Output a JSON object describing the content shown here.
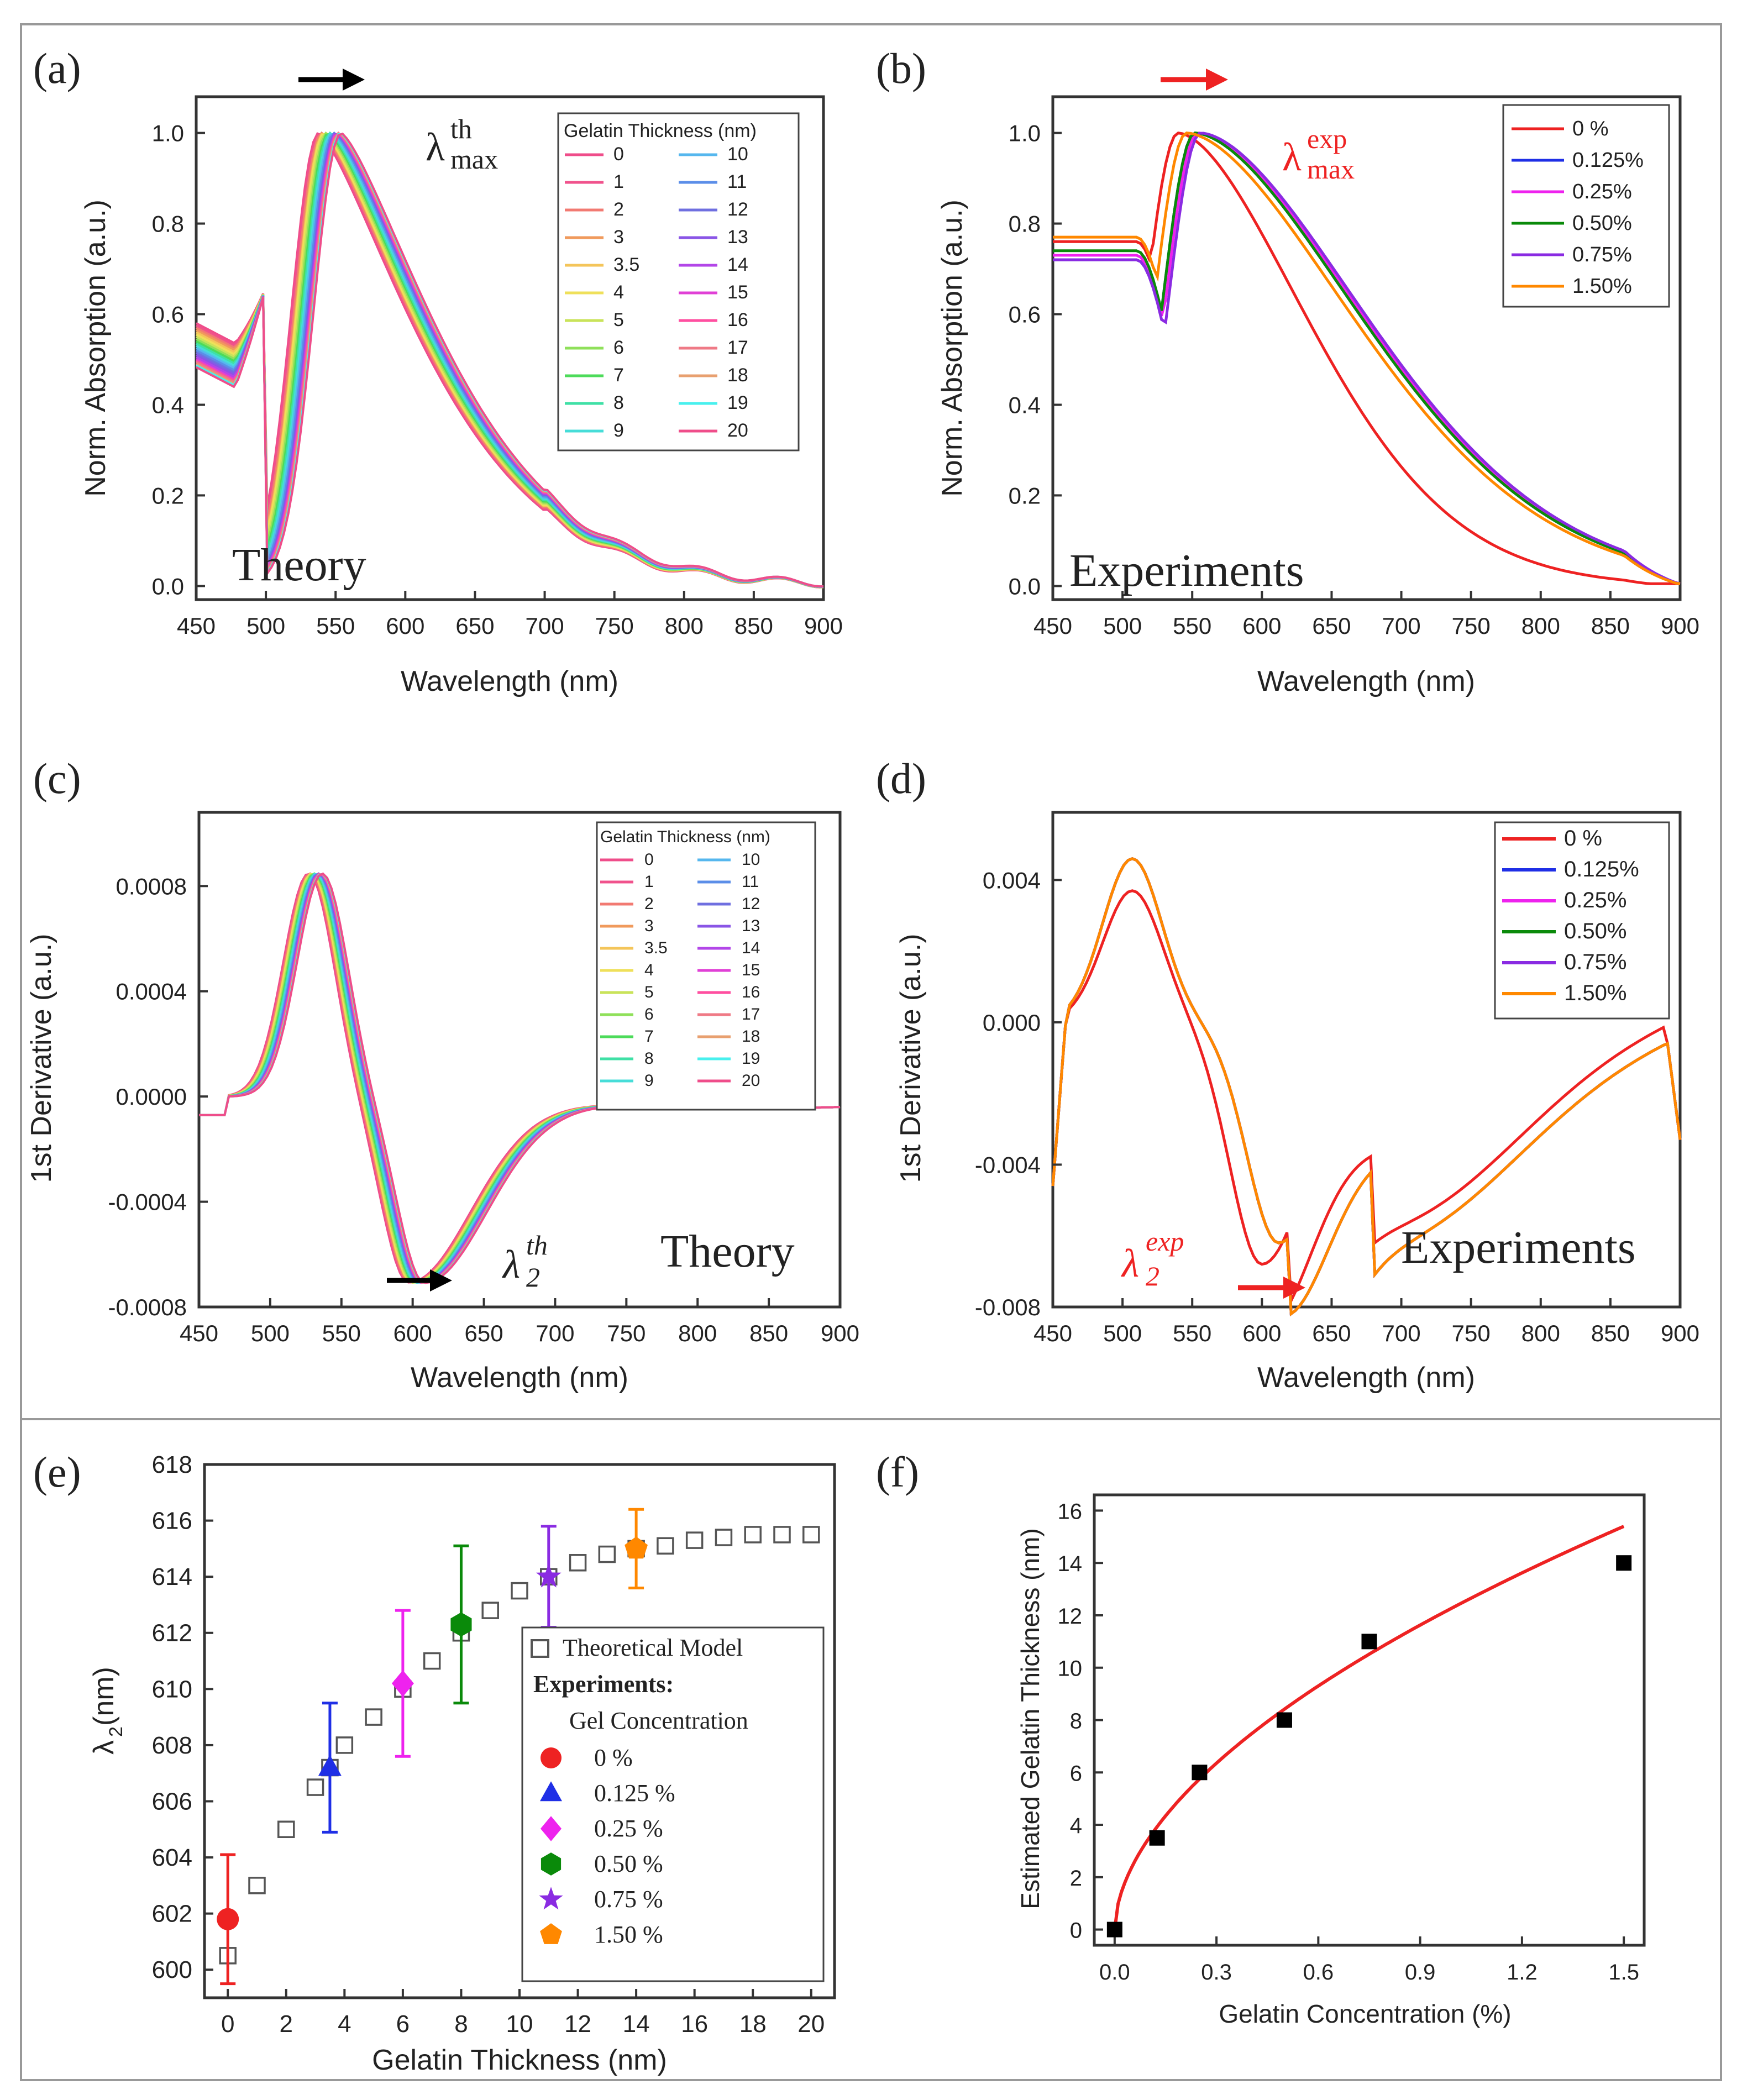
{
  "colors": {
    "red": "#ee2222",
    "blue": "#1f2fe6",
    "magenta": "#ee22ee",
    "green": "#0a8a0a",
    "purple": "#8a2be2",
    "orange": "#ff8800"
  },
  "theory_palette": [
    "#ef4d8a",
    "#f0528c",
    "#f27a72",
    "#f09a5c",
    "#f4c55a",
    "#efe05a",
    "#c9e35a",
    "#8fe05a",
    "#4ddb5a",
    "#3fe0a6",
    "#46ddd8",
    "#56b7ee",
    "#5b8ee8",
    "#6f6fe0",
    "#8a55e6",
    "#b346e8",
    "#e040d6",
    "#ff4fa0",
    "#ef7a86",
    "#e8a070",
    "#48f0ee"
  ],
  "chart_data": [
    {
      "id": "a",
      "panel_label": "(a)",
      "type": "line",
      "title": "Theory",
      "xlabel": "Wavelength (nm)",
      "ylabel": "Norm. Absorption (a.u.)",
      "xlim": [
        450,
        900
      ],
      "ylim": [
        -0.03,
        1.08
      ],
      "xticks": [
        "450",
        "500",
        "550",
        "600",
        "650",
        "700",
        "750",
        "800",
        "850",
        "900"
      ],
      "yticks": [
        "0.0",
        "0.2",
        "0.4",
        "0.6",
        "0.8",
        "1.0"
      ],
      "annotation": "λ",
      "annotation_sup": "th",
      "annotation_sub": "max",
      "legend_title": "Gelatin Thickness (nm)",
      "series": [
        {
          "name": "0",
          "peak": 538,
          "start": 0.58
        },
        {
          "name": "1",
          "peak": 539,
          "start": 0.575
        },
        {
          "name": "2",
          "peak": 540,
          "start": 0.57
        },
        {
          "name": "3",
          "peak": 541,
          "start": 0.565
        },
        {
          "name": "3.5",
          "peak": 541.5,
          "start": 0.56
        },
        {
          "name": "4",
          "peak": 542,
          "start": 0.555
        },
        {
          "name": "5",
          "peak": 543,
          "start": 0.55
        },
        {
          "name": "6",
          "peak": 544,
          "start": 0.545
        },
        {
          "name": "7",
          "peak": 545,
          "start": 0.54
        },
        {
          "name": "8",
          "peak": 546,
          "start": 0.535
        },
        {
          "name": "9",
          "peak": 547,
          "start": 0.53
        },
        {
          "name": "10",
          "peak": 548,
          "start": 0.525
        },
        {
          "name": "11",
          "peak": 549,
          "start": 0.52
        },
        {
          "name": "12",
          "peak": 550,
          "start": 0.515
        },
        {
          "name": "13",
          "peak": 550.5,
          "start": 0.51
        },
        {
          "name": "14",
          "peak": 551,
          "start": 0.505
        },
        {
          "name": "15",
          "peak": 551.5,
          "start": 0.5
        },
        {
          "name": "16",
          "peak": 552,
          "start": 0.497
        },
        {
          "name": "17",
          "peak": 552.5,
          "start": 0.494
        },
        {
          "name": "18",
          "peak": 553,
          "start": 0.49
        },
        {
          "name": "19",
          "peak": 553.5,
          "start": 0.487
        },
        {
          "name": "20",
          "peak": 554,
          "start": 0.483
        }
      ]
    },
    {
      "id": "b",
      "panel_label": "(b)",
      "type": "line",
      "title": "Experiments",
      "xlabel": "Wavelength (nm)",
      "ylabel": "Norm. Absorption (a.u.)",
      "xlim": [
        450,
        900
      ],
      "ylim": [
        -0.03,
        1.08
      ],
      "xticks": [
        "450",
        "500",
        "550",
        "600",
        "650",
        "700",
        "750",
        "800",
        "850",
        "900"
      ],
      "yticks": [
        "0.0",
        "0.2",
        "0.4",
        "0.6",
        "0.8",
        "1.0"
      ],
      "annotation": "λ",
      "annotation_sup": "exp",
      "annotation_sub": "max",
      "series": [
        {
          "name": "0 %",
          "color": "#ee2222",
          "peak": 540,
          "start": 0.76,
          "narrow": true
        },
        {
          "name": "0.125%",
          "color": "#1f2fe6",
          "peak": 552,
          "start": 0.72
        },
        {
          "name": "0.25%",
          "color": "#ee22ee",
          "peak": 554,
          "start": 0.73
        },
        {
          "name": "0.50%",
          "color": "#0a8a0a",
          "peak": 552,
          "start": 0.74
        },
        {
          "name": "0.75%",
          "color": "#8a2be2",
          "peak": 556,
          "start": 0.72
        },
        {
          "name": "1.50%",
          "color": "#ff8800",
          "peak": 546,
          "start": 0.77
        }
      ]
    },
    {
      "id": "c",
      "panel_label": "(c)",
      "type": "line",
      "title": "Theory",
      "xlabel": "Wavelength (nm)",
      "ylabel": "1st Derivative (a.u.)",
      "xlim": [
        450,
        900
      ],
      "ylim": [
        -0.0008,
        0.00108
      ],
      "xticks": [
        "450",
        "500",
        "550",
        "600",
        "650",
        "700",
        "750",
        "800",
        "850",
        "900"
      ],
      "yticks": [
        "-0.0008",
        "-0.0004",
        "0.0000",
        "0.0004",
        "0.0008"
      ],
      "annotation": "λ",
      "annotation_sup": "th",
      "annotation_sub": "2",
      "legend_title": "Gelatin Thickness (nm)"
    },
    {
      "id": "d",
      "panel_label": "(d)",
      "type": "line",
      "title": "Experiments",
      "xlabel": "Wavelength (nm)",
      "ylabel": "1st Derivative (a.u.)",
      "xlim": [
        450,
        900
      ],
      "ylim": [
        -0.008,
        0.0059
      ],
      "xticks": [
        "450",
        "500",
        "550",
        "600",
        "650",
        "700",
        "750",
        "800",
        "850",
        "900"
      ],
      "yticks": [
        "-0.008",
        "-0.004",
        "0.000",
        "0.004"
      ],
      "annotation": "λ",
      "annotation_sup": "exp",
      "annotation_sub": "2"
    },
    {
      "id": "e",
      "panel_label": "(e)",
      "type": "scatter",
      "xlabel": "Gelatin Thickness (nm)",
      "ylabel": "λ",
      "ylabel_sub": "2",
      "ylabel_suffix": " (nm)",
      "xlim": [
        -0.8,
        20.8
      ],
      "ylim": [
        599,
        618
      ],
      "xticks": [
        "0",
        "2",
        "4",
        "6",
        "8",
        "10",
        "12",
        "14",
        "16",
        "18",
        "20"
      ],
      "yticks": [
        "600",
        "602",
        "604",
        "606",
        "608",
        "610",
        "612",
        "614",
        "616",
        "618"
      ],
      "theory_label": "Theoretical Model",
      "experiments_label": "Experiments:",
      "concentration_label": "Gel Concentration",
      "theory_points": [
        [
          0,
          600.5
        ],
        [
          1,
          603
        ],
        [
          2,
          605
        ],
        [
          3,
          606.5
        ],
        [
          3.5,
          607.2
        ],
        [
          4,
          608
        ],
        [
          5,
          609
        ],
        [
          6,
          610
        ],
        [
          7,
          611
        ],
        [
          8,
          612
        ],
        [
          9,
          612.8
        ],
        [
          10,
          613.5
        ],
        [
          11,
          614
        ],
        [
          12,
          614.5
        ],
        [
          13,
          614.8
        ],
        [
          14,
          615
        ],
        [
          15,
          615.1
        ],
        [
          16,
          615.3
        ],
        [
          17,
          615.4
        ],
        [
          18,
          615.5
        ],
        [
          19,
          615.5
        ],
        [
          20,
          615.5
        ]
      ],
      "experiment_points": [
        {
          "label": "0 %",
          "x": 0,
          "y": 601.8,
          "err": 2.3,
          "marker": "circle",
          "color": "#ee2222"
        },
        {
          "label": "0.125 %",
          "x": 3.5,
          "y": 607.2,
          "err": 2.3,
          "marker": "triangle",
          "color": "#1f2fe6"
        },
        {
          "label": "0.25 %",
          "x": 6,
          "y": 610.2,
          "err": 2.6,
          "marker": "diamond",
          "color": "#ee22ee"
        },
        {
          "label": "0.50 %",
          "x": 8,
          "y": 612.3,
          "err": 2.8,
          "marker": "hexagon",
          "color": "#0a8a0a"
        },
        {
          "label": "0.75 %",
          "x": 11,
          "y": 614,
          "err": 1.8,
          "marker": "star",
          "color": "#8a2be2"
        },
        {
          "label": "1.50 %",
          "x": 14,
          "y": 615,
          "err": 1.4,
          "marker": "pentagon",
          "color": "#ff8800"
        }
      ]
    },
    {
      "id": "f",
      "panel_label": "(f)",
      "type": "scatter",
      "xlabel": "Gelatin Concentration (%)",
      "ylabel": "Estimated Gelatin Thickness (nm)",
      "xlim": [
        -0.06,
        1.56
      ],
      "ylim": [
        -0.6,
        16.6
      ],
      "xticks": [
        "0.0",
        "0.3",
        "0.6",
        "0.9",
        "1.2",
        "1.5"
      ],
      "yticks": [
        "0",
        "2",
        "4",
        "6",
        "8",
        "10",
        "12",
        "14",
        "16"
      ],
      "points": [
        [
          0,
          0
        ],
        [
          0.125,
          3.5
        ],
        [
          0.25,
          6
        ],
        [
          0.5,
          8
        ],
        [
          0.75,
          11
        ],
        [
          1.5,
          14
        ]
      ],
      "fit": {
        "a": 12.32,
        "b": 0.55
      }
    }
  ]
}
